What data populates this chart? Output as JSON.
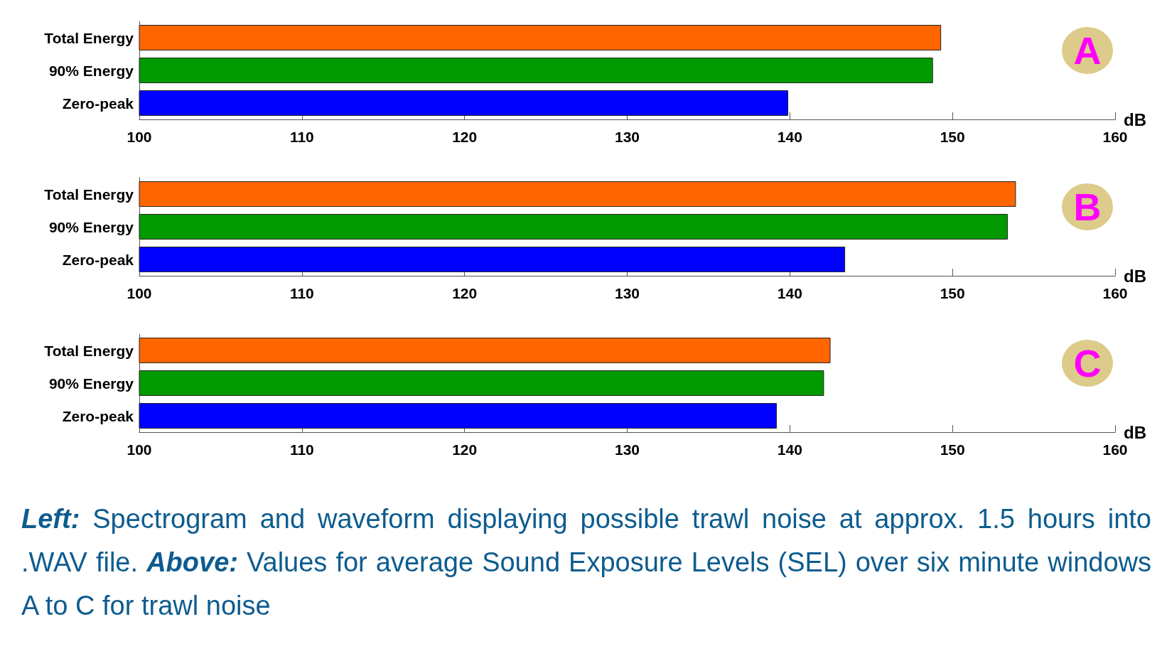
{
  "chart_data": [
    {
      "type": "bar",
      "orientation": "horizontal",
      "categories": [
        "Total Energy",
        "90% Energy",
        "Zero-peak"
      ],
      "values": [
        149.3,
        148.8,
        139.9
      ],
      "colors": [
        "#ff6600",
        "#009900",
        "#0000ff"
      ],
      "xlim": [
        100,
        160
      ],
      "xticks": [
        100,
        110,
        120,
        130,
        140,
        150,
        160
      ],
      "xlabel": "dB",
      "annotations": [
        "A"
      ]
    },
    {
      "type": "bar",
      "orientation": "horizontal",
      "categories": [
        "Total Energy",
        "90% Energy",
        "Zero-peak"
      ],
      "values": [
        153.9,
        153.4,
        143.4
      ],
      "colors": [
        "#ff6600",
        "#009900",
        "#0000ff"
      ],
      "xlim": [
        100,
        160
      ],
      "xticks": [
        100,
        110,
        120,
        130,
        140,
        150,
        160
      ],
      "xlabel": "dB",
      "annotations": [
        "B"
      ]
    },
    {
      "type": "bar",
      "orientation": "horizontal",
      "categories": [
        "Total Energy",
        "90% Energy",
        "Zero-peak"
      ],
      "values": [
        142.5,
        142.1,
        139.2
      ],
      "colors": [
        "#ff6600",
        "#009900",
        "#0000ff"
      ],
      "xlim": [
        100,
        160
      ],
      "xticks": [
        100,
        110,
        120,
        130,
        140,
        150,
        160
      ],
      "xlabel": "dB",
      "annotations": [
        "C",
        "Left:",
        "Spectrogram and waveform displaying possible trawl noise at approx. 1.5 hours into .WAV file.",
        "Above:",
        "Values for  average Sound Exposure Levels (SEL) over six minute windows A to C for trawl noise"
      ]
    }
  ]
}
